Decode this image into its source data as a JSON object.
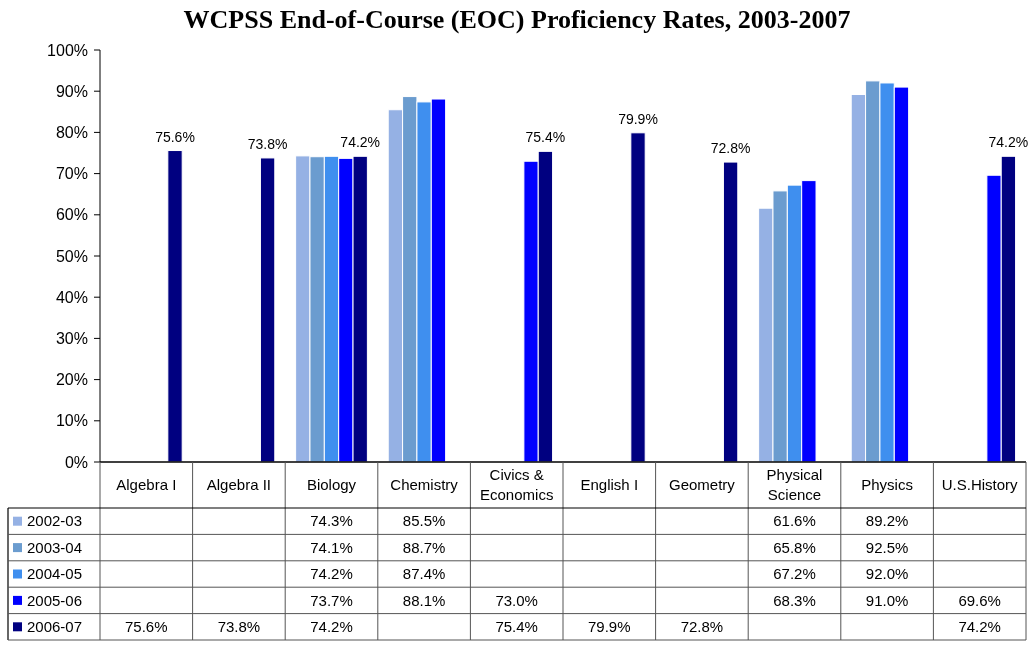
{
  "chart_data": {
    "type": "bar",
    "title": "WCPSS End-of-Course (EOC) Proficiency Rates, 2003-2007",
    "categories": [
      "Algebra I",
      "Algebra II",
      "Biology",
      "Chemistry",
      "Civics & Economics",
      "English I",
      "Geometry",
      "Physical Science",
      "Physics",
      "U.S.History"
    ],
    "series": [
      {
        "name": "2002-03",
        "color": "#95b1e4",
        "values": [
          null,
          null,
          74.3,
          85.5,
          null,
          null,
          null,
          61.6,
          89.2,
          null
        ],
        "value_labels": [
          null,
          null,
          "74.3%",
          "85.5%",
          null,
          null,
          null,
          "61.6%",
          "89.2%",
          null
        ]
      },
      {
        "name": "2003-04",
        "color": "#6b9ccf",
        "values": [
          null,
          null,
          74.1,
          88.7,
          null,
          null,
          null,
          65.8,
          92.5,
          null
        ],
        "value_labels": [
          null,
          null,
          "74.1%",
          "88.7%",
          null,
          null,
          null,
          "65.8%",
          "92.5%",
          null
        ]
      },
      {
        "name": "2004-05",
        "color": "#3f8fef",
        "values": [
          null,
          null,
          74.2,
          87.4,
          null,
          null,
          null,
          67.2,
          92.0,
          null
        ],
        "value_labels": [
          null,
          null,
          "74.2%",
          "87.4%",
          null,
          null,
          null,
          "67.2%",
          "92.0%",
          null
        ]
      },
      {
        "name": "2005-06",
        "color": "#0000ff",
        "values": [
          null,
          null,
          73.7,
          88.1,
          73.0,
          null,
          null,
          68.3,
          91.0,
          69.6
        ],
        "value_labels": [
          null,
          null,
          "73.7%",
          "88.1%",
          "73.0%",
          null,
          null,
          "68.3%",
          "91.0%",
          "69.6%"
        ]
      },
      {
        "name": "2006-07",
        "color": "#000080",
        "values": [
          75.6,
          73.8,
          74.2,
          null,
          75.4,
          79.9,
          72.8,
          null,
          null,
          74.2
        ],
        "value_labels": [
          "75.6%",
          "73.8%",
          "74.2%",
          null,
          "75.4%",
          "79.9%",
          "72.8%",
          null,
          null,
          "74.2%"
        ],
        "data_labels": true
      }
    ],
    "ylim": [
      0,
      100
    ],
    "yticks": [
      {
        "value": 0,
        "label": "0%"
      },
      {
        "value": 10,
        "label": "10%"
      },
      {
        "value": 20,
        "label": "20%"
      },
      {
        "value": 30,
        "label": "30%"
      },
      {
        "value": 40,
        "label": "40%"
      },
      {
        "value": 50,
        "label": "50%"
      },
      {
        "value": 60,
        "label": "60%"
      },
      {
        "value": 70,
        "label": "70%"
      },
      {
        "value": 80,
        "label": "80%"
      },
      {
        "value": 90,
        "label": "90%"
      },
      {
        "value": 100,
        "label": "100%"
      }
    ],
    "legend": "bottom"
  }
}
